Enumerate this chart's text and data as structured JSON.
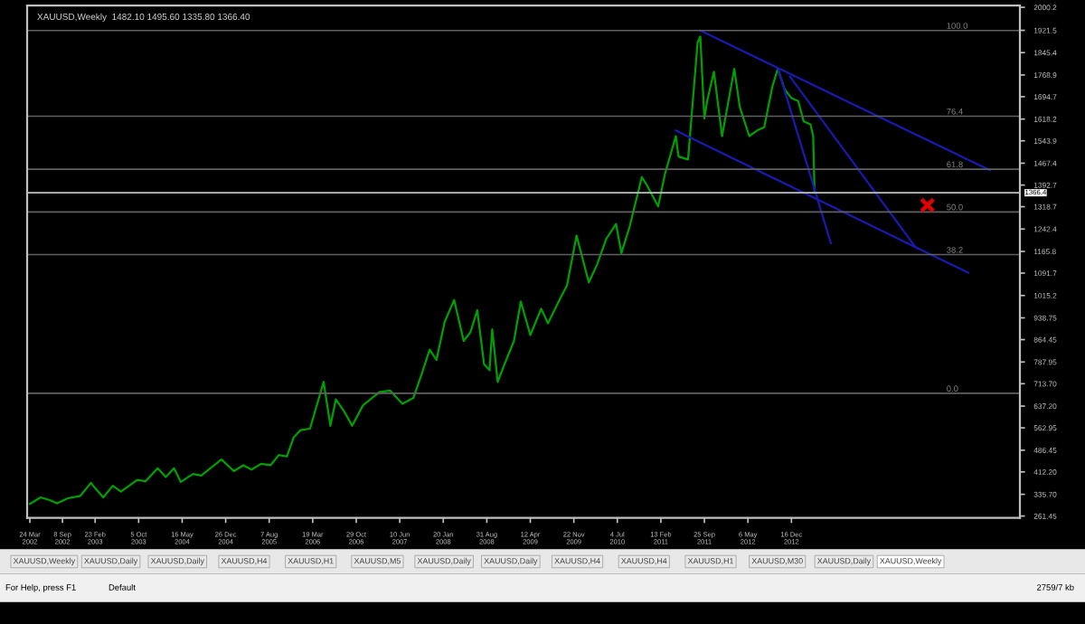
{
  "chart_data": {
    "type": "line",
    "title": "XAUUSD,Weekly  1482.10 1495.60 1335.80 1366.40",
    "annotations": [
      "XAUUSD,Weekly",
      "XAUUSD,Daily",
      "XAUUSD,Daily",
      "XAUUSD,H4",
      "XAUUSD,H1",
      "XAUUSD,M5",
      "XAUUSD,Daily",
      "XAUUSD,Daily",
      "XAUUSD,H4",
      "XAUUSD,H4",
      "XAUUSD,H1",
      "XAUUSD,M30",
      "XAUUSD,Daily",
      "XAUUSD,Weekly",
      "For Help, press F1",
      "Default",
      "2759/7 kb",
      {
        "text": "100.0",
        "x": "2015-02-22",
        "y": 1921
      },
      {
        "text": "76.4",
        "x": "2015-02-22",
        "y": 1628
      },
      {
        "text": "61.8",
        "x": "2015-02-22",
        "y": 1447
      },
      {
        "text": "50.0",
        "x": "2015-02-22",
        "y": 1301
      },
      {
        "text": "38.2",
        "x": "2015-02-22",
        "y": 1155
      },
      {
        "text": "0.0",
        "x": "2015-02-22",
        "y": 681
      }
    ],
    "series": [
      {
        "color": "#00a000",
        "marker": "none",
        "x": [
          "2002-03-24",
          "2002-05-19",
          "2002-07-07",
          "2002-08-11",
          "2002-10-06",
          "2002-12-08",
          "2003-02-02",
          "2003-02-16",
          "2003-04-06",
          "2003-05-25",
          "2003-07-06",
          "2003-09-28",
          "2003-11-09",
          "2004-01-11",
          "2004-02-22",
          "2004-04-04",
          "2004-05-09",
          "2004-07-11",
          "2004-08-22",
          "2004-12-05",
          "2005-02-06",
          "2005-03-27",
          "2005-05-08",
          "2005-06-26",
          "2005-08-14",
          "2005-09-25",
          "2005-11-06",
          "2005-12-11",
          "2006-01-15",
          "2006-03-05",
          "2006-05-14",
          "2006-06-18",
          "2006-07-16",
          "2006-08-27",
          "2006-10-08",
          "2006-12-03",
          "2007-02-25",
          "2007-04-22",
          "2007-06-24",
          "2007-08-19",
          "2007-09-30",
          "2007-11-11",
          "2007-12-16",
          "2008-01-27",
          "2008-03-16",
          "2008-05-04",
          "2008-06-08",
          "2008-07-13",
          "2008-08-17",
          "2008-09-14",
          "2008-09-28",
          "2008-10-26",
          "2008-11-30",
          "2009-01-18",
          "2009-02-22",
          "2009-04-12",
          "2009-06-07",
          "2009-07-12",
          "2009-09-13",
          "2009-10-18",
          "2009-12-06",
          "2010-02-07",
          "2010-03-21",
          "2010-05-09",
          "2010-06-27",
          "2010-07-25",
          "2010-09-05",
          "2010-11-07",
          "2010-12-05",
          "2011-01-30",
          "2011-03-06",
          "2011-05-01",
          "2011-05-15",
          "2011-07-03",
          "2011-08-21",
          "2011-09-04",
          "2011-09-25",
          "2011-10-09",
          "2011-11-13",
          "2011-12-25",
          "2012-02-26",
          "2012-03-25",
          "2012-05-13",
          "2012-06-24",
          "2012-07-29",
          "2012-09-09",
          "2012-10-07",
          "2012-11-11",
          "2012-12-16",
          "2013-01-20",
          "2013-02-17",
          "2013-03-24",
          "2013-04-07",
          "2013-04-14"
        ],
        "values": [
          303,
          325,
          315,
          305,
          322,
          330,
          375,
          362,
          325,
          365,
          345,
          385,
          380,
          425,
          395,
          425,
          378,
          405,
          400,
          455,
          415,
          435,
          420,
          440,
          435,
          470,
          465,
          530,
          555,
          560,
          720,
          570,
          660,
          620,
          570,
          640,
          685,
          690,
          645,
          665,
          745,
          830,
          795,
          925,
          1000,
          860,
          890,
          965,
          780,
          760,
          900,
          720,
          780,
          860,
          995,
          880,
          970,
          920,
          1005,
          1050,
          1220,
          1060,
          1120,
          1210,
          1260,
          1160,
          1250,
          1420,
          1390,
          1320,
          1430,
          1560,
          1490,
          1480,
          1880,
          1900,
          1620,
          1680,
          1780,
          1560,
          1790,
          1660,
          1560,
          1580,
          1590,
          1730,
          1790,
          1720,
          1690,
          1680,
          1610,
          1600,
          1560,
          1366.4
        ]
      },
      {
        "type": "line",
        "color": "#1a1ab0",
        "marker": "none",
        "x": [
          "2011-09-04",
          "2015-10-04"
        ],
        "values": [
          1921,
          1443
        ]
      },
      {
        "type": "line",
        "color": "#1a1ab0",
        "marker": "none",
        "x": [
          "2011-05-01",
          "2015-06-14"
        ],
        "values": [
          1579,
          1093
        ]
      },
      {
        "type": "line",
        "color": "#1a1ab0",
        "marker": "none",
        "x": [
          "2012-10-07",
          "2013-07-07"
        ],
        "values": [
          1792,
          1194
        ]
      },
      {
        "type": "line",
        "color": "#1a1ab0",
        "marker": "none",
        "x": [
          "2012-12-09",
          "2014-09-14"
        ],
        "values": [
          1763,
          1182
        ]
      },
      {
        "type": "scatter",
        "color": "#e00000",
        "marker": "cross",
        "x": [
          "2014-11-16"
        ],
        "values": [
          1324
        ]
      }
    ],
    "ref_lines": [
      {
        "axis": "y",
        "value": 1921,
        "color": "#606060"
      },
      {
        "axis": "y",
        "value": 1628,
        "color": "#606060"
      },
      {
        "axis": "y",
        "value": 1447,
        "color": "#606060"
      },
      {
        "axis": "y",
        "value": 1301,
        "color": "#606060"
      },
      {
        "axis": "y",
        "value": 1155,
        "color": "#606060"
      },
      {
        "axis": "y",
        "value": 681,
        "color": "#606060"
      },
      {
        "axis": "y",
        "value": 1366.4,
        "label": "1366.4",
        "color": "#c0c0c0"
      }
    ],
    "xlim": [
      "2002-03-10",
      "2016-03-06"
    ],
    "xticks": [
      {
        "value": "2002-03-24",
        "label": "24 Mar 2002"
      },
      {
        "value": "2002-09-08",
        "label": "8 Sep 2002"
      },
      {
        "value": "2003-02-23",
        "label": "23 Feb 2003"
      },
      {
        "value": "2003-10-05",
        "label": "5 Oct 2003"
      },
      {
        "value": "2004-05-16",
        "label": "16 May 2004"
      },
      {
        "value": "2004-12-26",
        "label": "26 Dec 2004"
      },
      {
        "value": "2005-08-07",
        "label": "7 Aug 2005"
      },
      {
        "value": "2006-03-19",
        "label": "19 Mar 2006"
      },
      {
        "value": "2006-10-29",
        "label": "29 Oct 2006"
      },
      {
        "value": "2007-06-10",
        "label": "10 Jun 2007"
      },
      {
        "value": "2008-01-20",
        "label": "20 Jan 2008"
      },
      {
        "value": "2008-08-31",
        "label": "31 Aug 2008"
      },
      {
        "value": "2009-04-12",
        "label": "12 Apr 2009"
      },
      {
        "value": "2009-11-22",
        "label": "22 Nov 2009"
      },
      {
        "value": "2010-07-04",
        "label": "4 Jul 2010"
      },
      {
        "value": "2011-02-13",
        "label": "13 Feb 2011"
      },
      {
        "value": "2011-09-25",
        "label": "25 Sep 2011"
      },
      {
        "value": "2012-05-06",
        "label": "6 May 2012"
      },
      {
        "value": "2012-12-16",
        "label": "16 Dec 2012"
      }
    ],
    "ylim": [
      255,
      2006
    ],
    "yticks": [
      2000.2,
      1921.5,
      1845.4,
      1768.9,
      1694.7,
      1618.2,
      1543.9,
      1467.4,
      1392.7,
      1318.7,
      1242.4,
      1165.8,
      1091.7,
      1015.2,
      938.75,
      864.45,
      787.95,
      {
        "value": 713.7,
        "label": "713.70"
      },
      {
        "value": 637.2,
        "label": "637.20"
      },
      562.95,
      486.45,
      {
        "value": 412.2,
        "label": "412.20"
      },
      {
        "value": 335.7,
        "label": "335.70"
      },
      261.45
    ],
    "grid": false,
    "legend": false,
    "line_style": "solid"
  }
}
